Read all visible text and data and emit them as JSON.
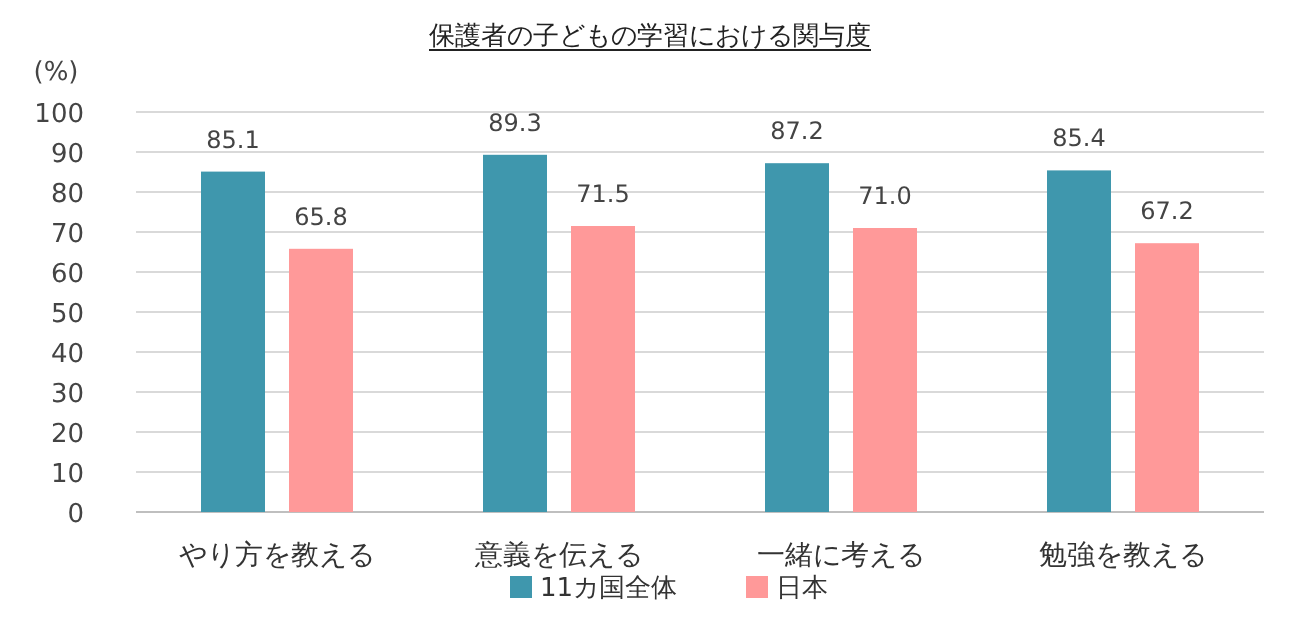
{
  "chart_data": {
    "type": "bar",
    "title": "保護者の子どもの学習における関与度",
    "ylabel": "(%)",
    "categories": [
      "やり方を教える",
      "意義を伝える",
      "一緒に考える",
      "勉強を教える"
    ],
    "series": [
      {
        "name": "11カ国全体",
        "color": "#3f97ad",
        "values": [
          85.1,
          89.3,
          87.2,
          85.4
        ]
      },
      {
        "name": "日本",
        "color": "#ff9999",
        "values": [
          65.8,
          71.5,
          71.0,
          67.2
        ]
      }
    ],
    "ylim": [
      0,
      100
    ],
    "yticks": [
      0,
      10,
      20,
      30,
      40,
      50,
      60,
      70,
      80,
      90,
      100
    ],
    "grid": "y",
    "legend": "bottom",
    "value_labels": [
      [
        "85.1",
        "89.3",
        "87.2",
        "85.4"
      ],
      [
        "65.8",
        "71.5",
        "71.0",
        "67.2"
      ]
    ]
  }
}
